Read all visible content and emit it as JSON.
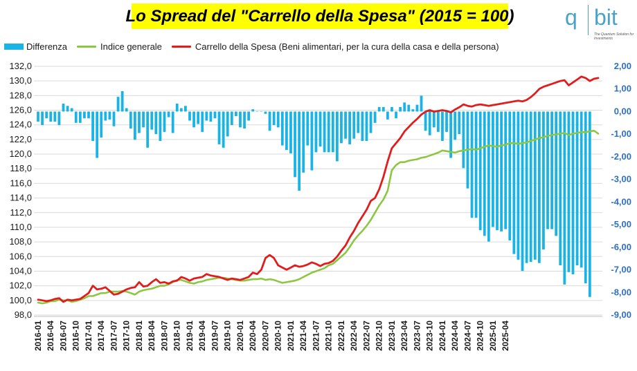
{
  "chart_data": {
    "type": "bar+line",
    "title": "Lo Spread del \"Carrello della Spesa\" (2015 = 100)",
    "legend": [
      "Differenza",
      "Indice generale",
      "Carrello della Spesa (Beni alimentari, per la cura della casa e della persona)"
    ],
    "legend_placement": "top-left",
    "colors": {
      "bars": "#19b3e6",
      "indice": "#8dc63f",
      "carrello": "#e21b1b",
      "right_axis_labels": "#2e6fc4"
    },
    "grid": true,
    "start_month": "2016-01",
    "x_tick_labels": [
      "2016-01",
      "2016-04",
      "2016-07",
      "2016-10",
      "2017-01",
      "2017-04",
      "2017-07",
      "2017-10",
      "2018-01",
      "2018-04",
      "2018-07",
      "2018-10",
      "2019-01",
      "2019-04",
      "2019-07",
      "2019-10",
      "2020-01",
      "2020-04",
      "2020-07",
      "2020-10",
      "2021-01",
      "2021-04",
      "2021-07",
      "2021-10",
      "2022-01",
      "2022-04",
      "2022-07",
      "2022-10",
      "2023-01",
      "2023-04",
      "2023-07",
      "2023-10",
      "2024-01",
      "2024-04",
      "2024-07",
      "2024-10",
      "2025-01",
      "2025-04"
    ],
    "y_left": {
      "min": 98,
      "max": 132,
      "ticks": [
        "98,0",
        "100,0",
        "102,0",
        "104,0",
        "106,0",
        "108,0",
        "110,0",
        "112,0",
        "114,0",
        "116,0",
        "118,0",
        "120,0",
        "122,0",
        "124,0",
        "126,0",
        "128,0",
        "130,0",
        "132,0"
      ]
    },
    "y_right": {
      "min": -9,
      "max": 2,
      "ticks": [
        "2,00",
        "1,00",
        "0,00",
        "-1,00",
        "-2,00",
        "-3,00",
        "-4,00",
        "-5,00",
        "-6,00",
        "-7,00",
        "-8,00",
        "-9,00"
      ]
    },
    "series": [
      {
        "name": "Differenza",
        "axis": "right",
        "type": "bar",
        "values": [
          -0.45,
          -0.6,
          -0.3,
          -0.45,
          -0.45,
          -0.6,
          0.35,
          0.25,
          0.15,
          -0.5,
          -0.5,
          -0.3,
          -0.3,
          -1.3,
          -2.05,
          -1.15,
          -0.4,
          -0.35,
          -0.65,
          0.65,
          0.9,
          0.15,
          -0.75,
          -1.25,
          -0.95,
          -0.7,
          -1.6,
          -0.8,
          -1.0,
          -1.3,
          -0.9,
          -0.25,
          -0.95,
          0.35,
          0.15,
          0.25,
          -0.4,
          -0.7,
          -0.55,
          -0.9,
          -0.4,
          -0.45,
          -0.3,
          -1.45,
          -1.6,
          -1.1,
          -0.6,
          -0.2,
          -0.7,
          -0.75,
          -0.4,
          0.1,
          0.0,
          0.0,
          -0.1,
          -0.85,
          -0.6,
          -0.7,
          -1.5,
          -1.7,
          -1.85,
          -2.9,
          -3.5,
          -2.7,
          -1.5,
          -2.6,
          -1.8,
          -1.55,
          -1.8,
          -1.8,
          -1.8,
          -2.2,
          -1.4,
          -1.2,
          -1.45,
          -1.2,
          -0.95,
          -1.3,
          -1.3,
          -0.95,
          -0.5,
          0.2,
          0.2,
          -0.35,
          0.2,
          -0.3,
          0.2,
          0.4,
          0.3,
          0.1,
          0.3,
          0.7,
          -0.85,
          -1.05,
          -0.7,
          -0.9,
          -1.3,
          -0.9,
          -2.05,
          -1.25,
          -1.0,
          -2.5,
          -3.4,
          -4.7,
          -4.7,
          -5.25,
          -5.5,
          -5.75,
          -5.1,
          -5.25,
          -5.3,
          -5.2,
          -5.7,
          -6.3,
          -6.55,
          -7.05,
          -6.7,
          -6.65,
          -6.55,
          -6.7,
          -6.1,
          -5.2,
          -5.2,
          -5.5,
          -6.8,
          -7.65,
          -7.1,
          -7.2,
          -6.8,
          -6.9,
          -7.6,
          -8.2
        ]
      },
      {
        "name": "Indice generale",
        "axis": "left",
        "type": "line",
        "values": [
          99.7,
          99.6,
          99.7,
          99.9,
          99.9,
          100.1,
          100.0,
          100.0,
          99.8,
          99.9,
          100.1,
          100.3,
          100.6,
          100.6,
          100.8,
          101.0,
          101.0,
          101.2,
          101.2,
          101.2,
          101.3,
          101.2,
          101.0,
          100.8,
          101.2,
          101.4,
          101.5,
          101.6,
          101.8,
          102.0,
          102.0,
          102.2,
          102.5,
          102.8,
          102.8,
          102.6,
          102.4,
          102.3,
          102.5,
          102.6,
          102.8,
          102.9,
          103.0,
          103.1,
          103.1,
          103.0,
          102.9,
          102.8,
          102.7,
          102.7,
          102.8,
          102.9,
          102.9,
          103.0,
          102.8,
          102.9,
          102.8,
          102.6,
          102.4,
          102.5,
          102.6,
          102.7,
          102.9,
          103.2,
          103.5,
          103.8,
          104.0,
          104.2,
          104.4,
          104.8,
          105.0,
          105.5,
          106.0,
          106.5,
          107.3,
          108.2,
          108.9,
          109.5,
          110.2,
          111.0,
          112.0,
          113.0,
          113.8,
          115.0,
          117.8,
          118.5,
          118.9,
          118.9,
          119.1,
          119.2,
          119.3,
          119.5,
          119.6,
          119.8,
          120.0,
          120.2,
          120.5,
          120.4,
          120.3,
          120.2,
          120.4,
          120.5,
          120.6,
          120.7,
          120.6,
          120.8,
          121.0,
          121.2,
          121.1,
          121.0,
          121.2,
          121.3,
          121.5,
          121.5,
          121.4,
          121.5,
          121.6,
          121.8,
          122.0,
          122.2,
          122.3,
          122.5,
          122.6,
          122.7,
          122.8,
          122.9,
          122.6,
          122.8,
          122.9,
          123.0,
          123.0,
          123.1,
          123.2,
          122.8
        ]
      },
      {
        "name": "Carrello della Spesa (Beni alimentari, per la cura della casa e della persona)",
        "axis": "left",
        "type": "line",
        "values": [
          100.1,
          100.0,
          99.9,
          100.0,
          100.2,
          100.3,
          99.8,
          100.1,
          100.0,
          100.1,
          100.2,
          100.6,
          101.0,
          102.0,
          101.5,
          101.6,
          101.8,
          101.3,
          100.8,
          100.9,
          101.2,
          101.5,
          101.7,
          101.8,
          102.5,
          101.9,
          102.0,
          102.5,
          102.9,
          102.4,
          102.5,
          102.3,
          102.6,
          102.7,
          103.2,
          103.0,
          102.7,
          103.0,
          103.1,
          103.2,
          103.6,
          103.4,
          103.3,
          103.2,
          103.0,
          102.8,
          103.0,
          102.9,
          102.8,
          103.0,
          103.2,
          103.8,
          103.6,
          104.2,
          105.8,
          106.2,
          105.8,
          104.8,
          104.5,
          104.2,
          104.5,
          104.8,
          104.6,
          104.7,
          104.9,
          105.2,
          105.0,
          104.7,
          105.0,
          105.1,
          105.4,
          106.0,
          106.8,
          107.5,
          108.6,
          109.5,
          110.6,
          111.5,
          112.4,
          113.6,
          114.0,
          115.2,
          116.9,
          119.0,
          120.8,
          121.5,
          122.2,
          123.1,
          123.7,
          124.3,
          124.8,
          125.4,
          125.8,
          126.0,
          125.8,
          125.9,
          126.0,
          125.9,
          125.7,
          126.1,
          126.4,
          126.8,
          126.6,
          126.5,
          126.7,
          126.8,
          126.7,
          126.6,
          126.7,
          126.8,
          126.9,
          127.0,
          127.1,
          127.2,
          127.3,
          127.2,
          127.4,
          127.8,
          128.3,
          128.9,
          129.2,
          129.4,
          129.6,
          129.8,
          130.0,
          130.1,
          129.4,
          129.8,
          130.2,
          130.6,
          130.4,
          130.0,
          130.3,
          130.4
        ]
      }
    ]
  }
}
